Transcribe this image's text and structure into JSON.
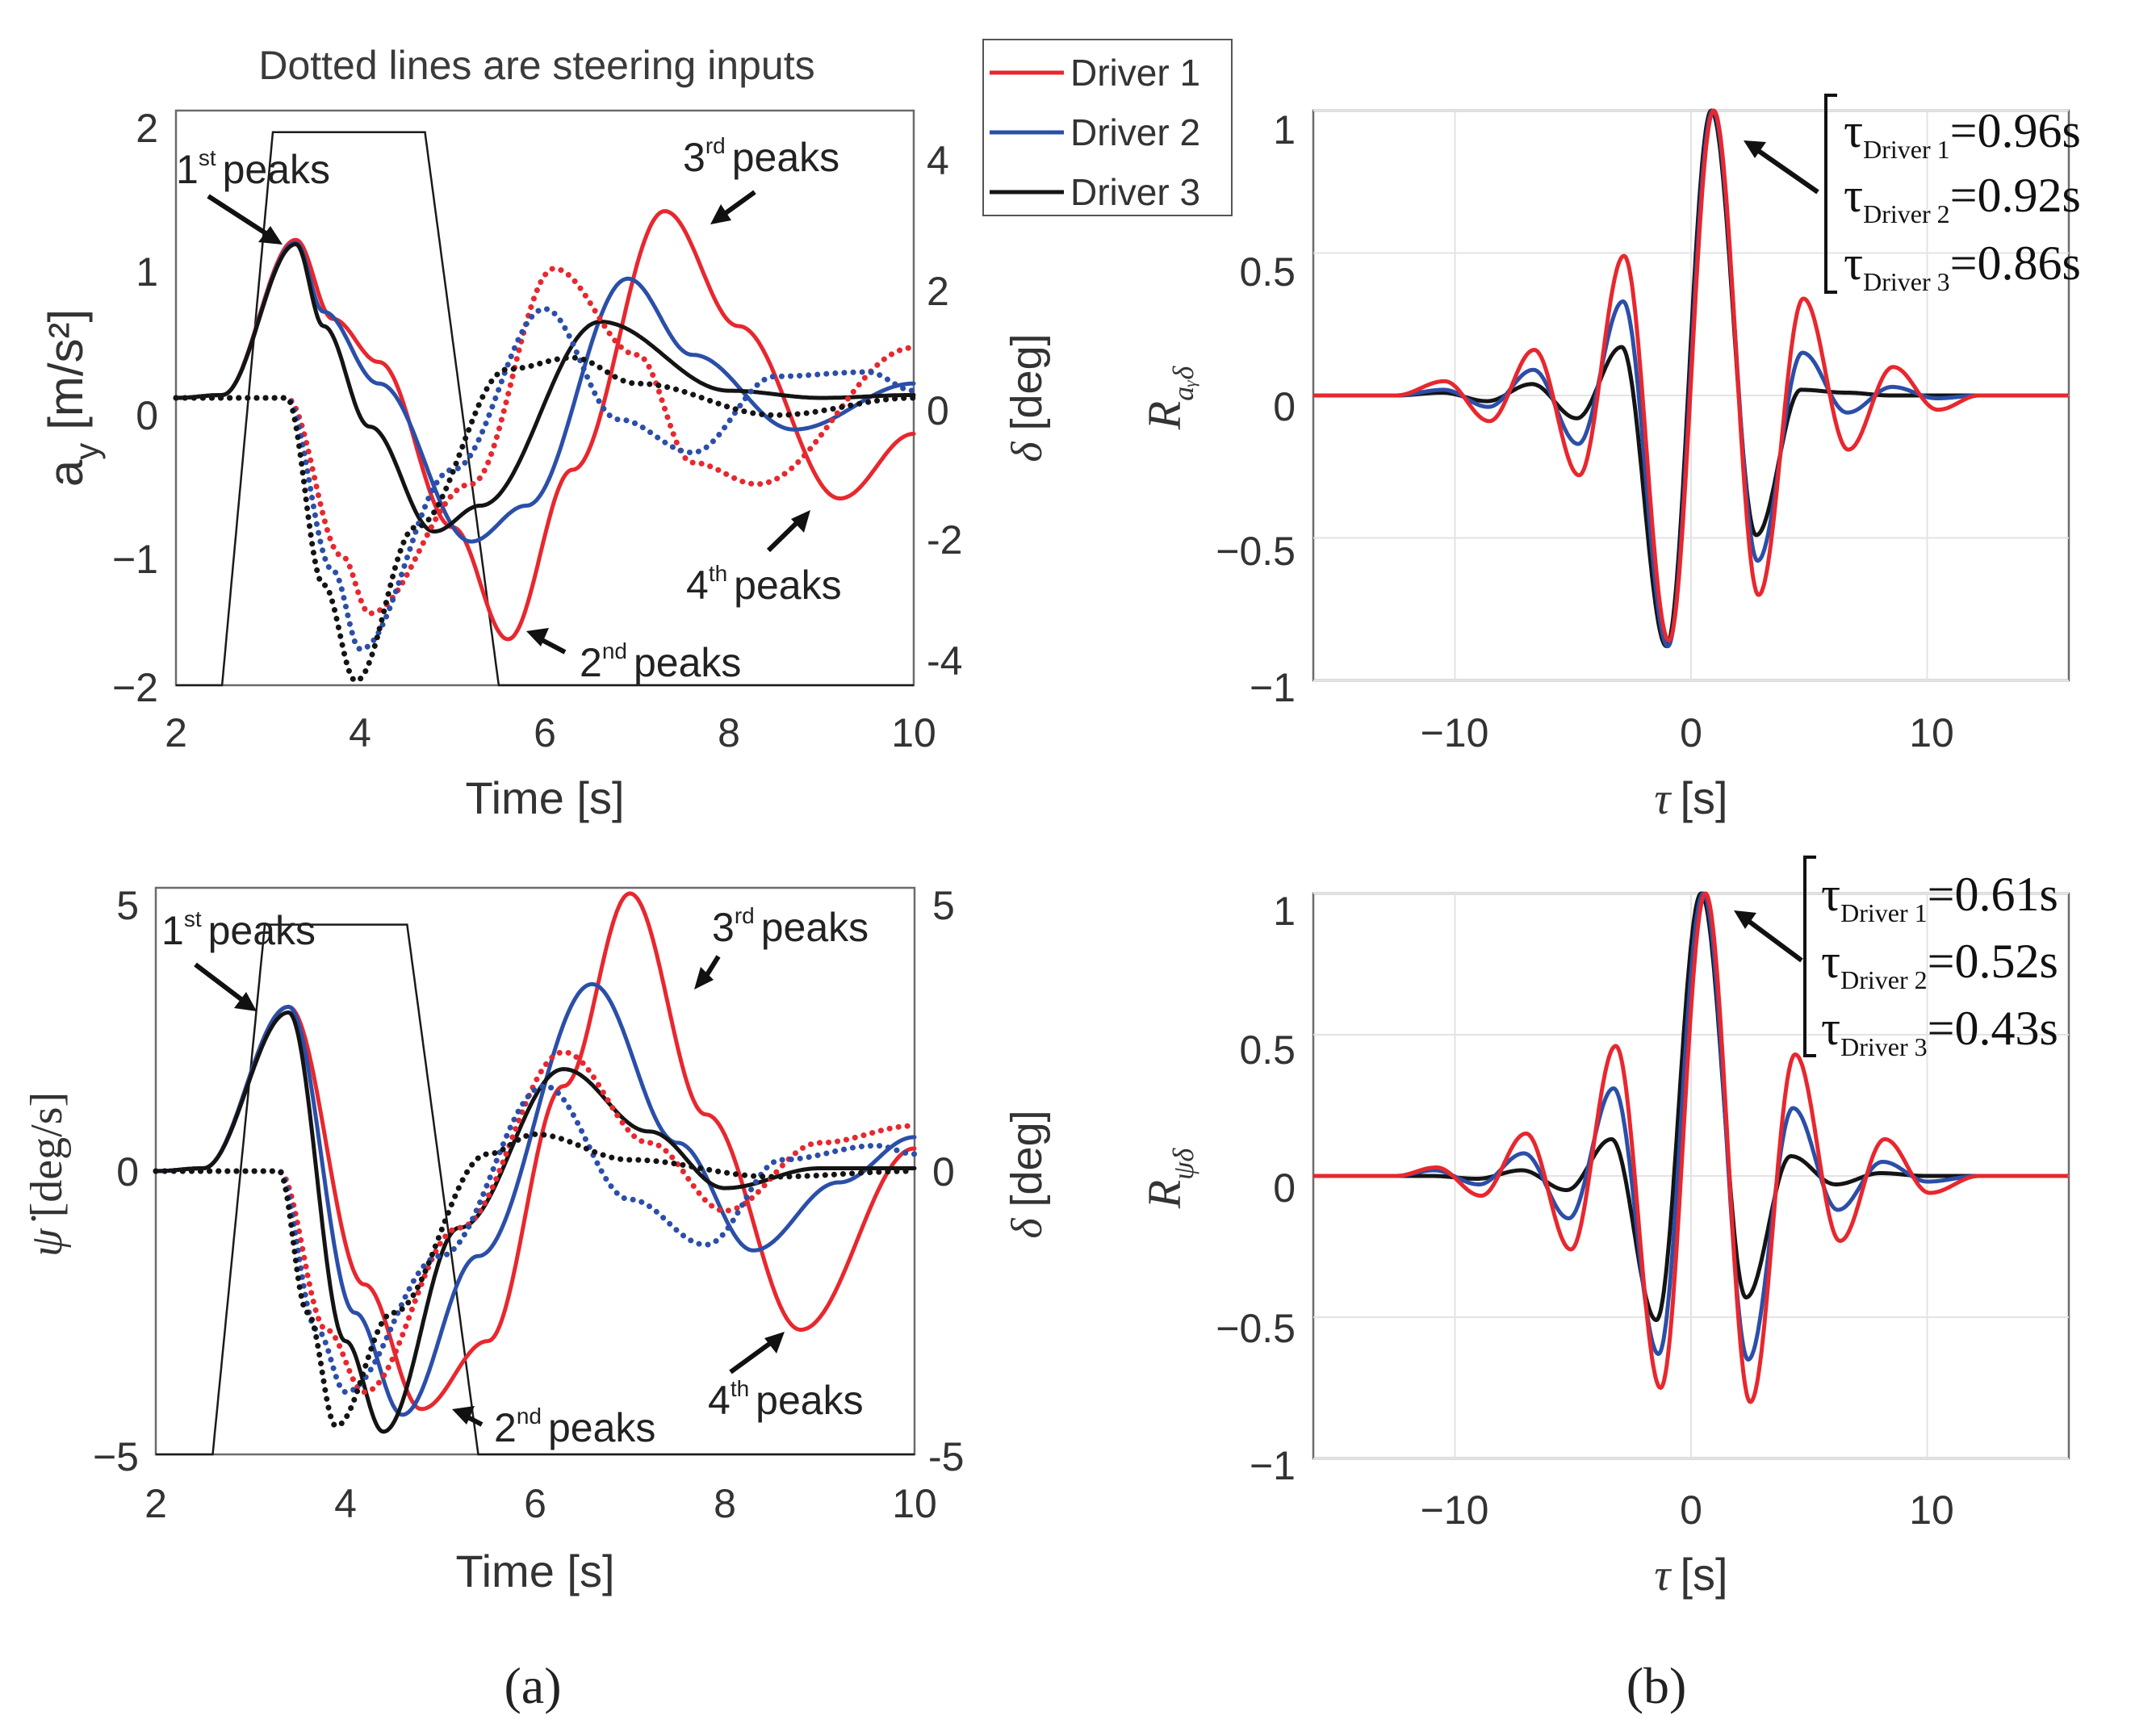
{
  "figure": {
    "label_a": "(a)",
    "label_b": "(b)",
    "note": "Dotted lines are steering inputs",
    "legend": [
      {
        "name": "Driver 1",
        "color": "#e8272e"
      },
      {
        "name": "Driver 2",
        "color": "#2b4fa8"
      },
      {
        "name": "Driver 3",
        "color": "#141414"
      }
    ],
    "steer_color": "#1a1a1a"
  },
  "chart_data": [
    {
      "id": "a-top",
      "type": "line",
      "title": "",
      "xlabel": "Time [s]",
      "ylabel": "a",
      "ylabel_sub": "y",
      "ylabel_unit": "[m/s²]",
      "y2label_sym": "δ",
      "y2label_unit": "[deg]",
      "xlim": [
        2,
        10
      ],
      "ylim": [
        -2,
        2
      ],
      "y2lim": [
        -4.4,
        4.4
      ],
      "xticks": [
        "2",
        "4",
        "6",
        "8",
        "10"
      ],
      "yticks": [
        "2",
        "1",
        "0",
        "−1",
        "−2"
      ],
      "y2ticks": [
        "4",
        "2",
        "0",
        "-2",
        "-4"
      ],
      "steering_profile": {
        "t": [
          2,
          2.5,
          3.05,
          4.7,
          5.5,
          10
        ],
        "v": [
          -2,
          -2,
          1.85,
          1.85,
          -2,
          -2
        ]
      },
      "series": [
        {
          "name": "Driver 1",
          "style": "solid",
          "t": [
            2,
            2.5,
            3.3,
            3.7,
            4.2,
            5,
            5.6,
            6.3,
            7.3,
            8.1,
            9.2,
            10
          ],
          "v": [
            0,
            0.02,
            1.1,
            0.55,
            0.25,
            -0.9,
            -1.68,
            -0.5,
            1.3,
            0.5,
            -0.7,
            -0.25
          ]
        },
        {
          "name": "Driver 2",
          "style": "solid",
          "t": [
            2,
            2.5,
            3.3,
            3.6,
            4.2,
            5.2,
            5.8,
            6.9,
            7.6,
            8.7,
            10
          ],
          "v": [
            0,
            0.02,
            1.08,
            0.6,
            0.1,
            -1.0,
            -0.75,
            0.83,
            0.3,
            -0.22,
            0.1
          ]
        },
        {
          "name": "Driver 3",
          "style": "solid",
          "t": [
            2,
            2.5,
            3.3,
            3.6,
            4.1,
            4.8,
            5.3,
            6.6,
            8.0,
            9,
            10
          ],
          "v": [
            0,
            0.02,
            1.07,
            0.5,
            -0.2,
            -0.93,
            -0.75,
            0.53,
            0.05,
            0.0,
            0.02
          ]
        },
        {
          "name": "Driver 1",
          "style": "dotted",
          "t": [
            2,
            3.2,
            3.8,
            4.1,
            5.2,
            6.1,
            7.0,
            7.6,
            8.3,
            10
          ],
          "v": [
            0,
            0,
            -1.1,
            -1.5,
            -0.6,
            0.9,
            0.3,
            -0.45,
            -0.6,
            0.35
          ]
        },
        {
          "name": "Driver 2",
          "style": "dotted",
          "t": [
            2,
            3.2,
            3.7,
            4.0,
            5.0,
            6.0,
            6.8,
            7.6,
            8.5,
            9.5,
            10
          ],
          "v": [
            0,
            0,
            -1.2,
            -1.75,
            -0.5,
            0.62,
            -0.15,
            -0.38,
            0.15,
            0.18,
            0.05
          ]
        },
        {
          "name": "Driver 3",
          "style": "dotted",
          "t": [
            2,
            3.2,
            3.6,
            3.95,
            4.6,
            5.6,
            6.3,
            7.0,
            8.5,
            10
          ],
          "v": [
            0,
            0,
            -1.3,
            -1.97,
            -0.9,
            0.2,
            0.28,
            0.1,
            -0.12,
            0.0
          ]
        }
      ],
      "annotations": [
        {
          "base": "1",
          "sup": "st",
          "word": "peaks"
        },
        {
          "base": "3",
          "sup": "rd",
          "word": "peaks"
        },
        {
          "base": "2",
          "sup": "nd",
          "word": "peaks"
        },
        {
          "base": "4",
          "sup": "th",
          "word": "peaks"
        }
      ]
    },
    {
      "id": "a-bottom",
      "type": "line",
      "title": "",
      "xlabel": "Time [s]",
      "ylabel": "ψ̇",
      "ylabel_unit": "[deg/s]",
      "y2label_sym": "δ",
      "y2label_unit": "[deg]",
      "xlim": [
        2,
        10
      ],
      "ylim": [
        -5,
        5
      ],
      "y2lim": [
        -5,
        5
      ],
      "xticks": [
        "2",
        "4",
        "6",
        "8",
        "10"
      ],
      "yticks": [
        "5",
        "0",
        "−5"
      ],
      "y2ticks": [
        "5",
        "0",
        "-5"
      ],
      "steering_profile": {
        "t": [
          2,
          2.6,
          3.15,
          4.65,
          5.4,
          10
        ],
        "v": [
          -5,
          -5,
          4.35,
          4.35,
          -5,
          -5
        ]
      },
      "series": [
        {
          "name": "Driver 1",
          "style": "solid",
          "t": [
            2,
            2.5,
            3.4,
            4.2,
            4.8,
            5.5,
            6.3,
            7.0,
            7.8,
            8.8,
            10
          ],
          "v": [
            0,
            0.05,
            2.9,
            -2.0,
            -4.2,
            -3.0,
            1.5,
            4.9,
            1.0,
            -2.8,
            0.4
          ]
        },
        {
          "name": "Driver 2",
          "style": "solid",
          "t": [
            2,
            2.5,
            3.4,
            4.1,
            4.6,
            5.4,
            6.6,
            7.5,
            8.3,
            9.2,
            10
          ],
          "v": [
            0,
            0.05,
            2.9,
            -2.5,
            -4.3,
            -1.5,
            3.3,
            0.5,
            -1.4,
            -0.2,
            0.6
          ]
        },
        {
          "name": "Driver 3",
          "style": "solid",
          "t": [
            2,
            2.5,
            3.4,
            4.0,
            4.4,
            5.2,
            6.3,
            7.2,
            8.0,
            9.0,
            10
          ],
          "v": [
            0,
            0.05,
            2.8,
            -3.0,
            -4.6,
            -1.0,
            1.8,
            0.7,
            -0.3,
            0.05,
            0.05
          ]
        },
        {
          "name": "Driver 1",
          "style": "dotted",
          "t": [
            2,
            3.3,
            3.8,
            4.2,
            5.2,
            6.3,
            7.2,
            8.0,
            9.0,
            10
          ],
          "v": [
            0,
            0,
            -2.8,
            -3.9,
            -1.0,
            2.1,
            0.5,
            -0.7,
            0.5,
            0.8
          ]
        },
        {
          "name": "Driver 2",
          "style": "dotted",
          "t": [
            2,
            3.3,
            3.7,
            4.0,
            5.0,
            6.1,
            7.0,
            7.8,
            8.6,
            9.6,
            10
          ],
          "v": [
            0,
            0,
            -2.8,
            -3.9,
            -1.5,
            1.5,
            -0.5,
            -1.3,
            0.2,
            0.45,
            0.3
          ]
        },
        {
          "name": "Driver 3",
          "style": "dotted",
          "t": [
            2,
            3.3,
            3.6,
            3.9,
            4.5,
            5.5,
            6.0,
            7.0,
            8.5,
            10
          ],
          "v": [
            0,
            0,
            -2.5,
            -4.5,
            -2.5,
            0.3,
            0.65,
            0.2,
            -0.1,
            0.0
          ]
        }
      ],
      "annotations": [
        {
          "base": "1",
          "sup": "st",
          "word": "peaks"
        },
        {
          "base": "3",
          "sup": "rd",
          "word": "peaks"
        },
        {
          "base": "2",
          "sup": "nd",
          "word": "peaks"
        },
        {
          "base": "4",
          "sup": "th",
          "word": "peaks"
        }
      ]
    },
    {
      "id": "b-top",
      "type": "line",
      "title": "",
      "xlabel_sym": "τ",
      "xlabel_unit": "[s]",
      "ylabel": "R",
      "ylabel_sub": "aᵧδ",
      "xlim": [
        -16,
        16
      ],
      "ylim": [
        -1,
        1
      ],
      "xticks": [
        "−10",
        "0",
        "10"
      ],
      "yticks": [
        "1",
        "0.5",
        "0",
        "−0.5",
        "−1"
      ],
      "x_grid": [
        -10,
        0,
        10
      ],
      "y_grid": [
        1,
        0.5,
        0,
        -0.5,
        -1
      ],
      "support": [
        -12.5,
        12.2
      ],
      "series": [
        {
          "name": "Driver 1",
          "peak": 1.0,
          "shift": 0.96,
          "amps": [
            -0.86,
            0.49,
            -0.28,
            0.16,
            -0.09,
            0.05
          ],
          "ramps": [
            -0.7,
            0.34,
            -0.19,
            0.1,
            -0.05
          ]
        },
        {
          "name": "Driver 2",
          "peak": 1.0,
          "shift": 0.92,
          "amps": [
            -0.88,
            0.33,
            -0.17,
            0.09,
            -0.04,
            0.02
          ],
          "ramps": [
            -0.58,
            0.15,
            -0.06,
            0.03,
            -0.01
          ]
        },
        {
          "name": "Driver 3",
          "peak": 1.0,
          "shift": 0.86,
          "amps": [
            -0.88,
            0.17,
            -0.08,
            0.04,
            -0.02,
            0.01
          ],
          "ramps": [
            -0.49,
            0.02,
            0.01,
            0.0,
            0.0
          ]
        }
      ],
      "tau_labels": [
        {
          "sym": "τ",
          "sub": "Driver 1",
          "val": "=0.96s"
        },
        {
          "sym": "τ",
          "sub": "Driver  2",
          "val": "=0.92s"
        },
        {
          "sym": "τ",
          "sub": "Driver 3",
          "val": "=0.86s"
        }
      ]
    },
    {
      "id": "b-bottom",
      "type": "line",
      "title": "",
      "xlabel_sym": "τ",
      "xlabel_unit": "[s]",
      "ylabel": "R",
      "ylabel_sub": "ψ̇δ",
      "xlim": [
        -16,
        16
      ],
      "ylim": [
        -1,
        1
      ],
      "xticks": [
        "−10",
        "0",
        "10"
      ],
      "yticks": [
        "1",
        "0.5",
        "0",
        "−0.5",
        "−1"
      ],
      "x_grid": [
        -10,
        0,
        10
      ],
      "y_grid": [
        1,
        0.5,
        0,
        -0.5,
        -1
      ],
      "support": [
        -12.5,
        12.2
      ],
      "series": [
        {
          "name": "Driver 1",
          "peak": 1.0,
          "shift": 0.61,
          "amps": [
            -0.75,
            0.46,
            -0.26,
            0.15,
            -0.07,
            0.03
          ],
          "ramps": [
            -0.8,
            0.43,
            -0.23,
            0.13,
            -0.06
          ]
        },
        {
          "name": "Driver 2",
          "peak": 1.0,
          "shift": 0.52,
          "amps": [
            -0.63,
            0.31,
            -0.15,
            0.08,
            -0.03,
            0.02
          ],
          "ramps": [
            -0.65,
            0.24,
            -0.12,
            0.05,
            -0.02
          ]
        },
        {
          "name": "Driver 3",
          "peak": 1.0,
          "shift": 0.43,
          "amps": [
            -0.51,
            0.13,
            -0.05,
            0.02,
            -0.01,
            0.0
          ],
          "ramps": [
            -0.43,
            0.07,
            -0.03,
            0.01,
            0.0
          ]
        }
      ],
      "tau_labels": [
        {
          "sym": "τ",
          "sub": "Driver 1",
          "val": "=0.61s"
        },
        {
          "sym": "τ",
          "sub": "Driver  2",
          "val": "=0.52s"
        },
        {
          "sym": "τ",
          "sub": "Driver 3",
          "val": "=0.43s"
        }
      ]
    }
  ]
}
